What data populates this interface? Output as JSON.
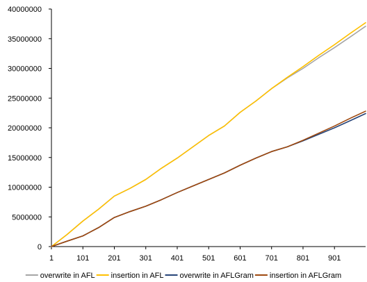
{
  "chart_data": {
    "type": "line",
    "title": "",
    "xlabel": "",
    "ylabel": "",
    "x_ticks": [
      1,
      101,
      201,
      301,
      401,
      501,
      601,
      701,
      801,
      901
    ],
    "xlim": [
      1,
      1000
    ],
    "y_ticks": [
      0,
      5000000,
      10000000,
      15000000,
      20000000,
      25000000,
      30000000,
      35000000,
      40000000
    ],
    "y_tick_labels": [
      "0",
      "5000000",
      "10000000",
      "15000000",
      "20000000",
      "25000000",
      "30000000",
      "35000000",
      "40000000"
    ],
    "ylim": [
      0,
      40000000
    ],
    "grid": false,
    "legend_position": "bottom",
    "series": [
      {
        "name": "overwrite in AFL",
        "color": "#a5a5a5",
        "x": [
          1,
          50,
          101,
          151,
          201,
          251,
          301,
          351,
          401,
          451,
          501,
          551,
          601,
          651,
          701,
          751,
          801,
          851,
          901,
          951,
          1000
        ],
        "values": [
          0,
          2000000,
          4300000,
          6300000,
          8500000,
          9800000,
          11300000,
          13200000,
          14900000,
          16800000,
          18700000,
          20300000,
          22600000,
          24500000,
          26600000,
          28400000,
          30000000,
          31800000,
          33500000,
          35300000,
          37100000
        ]
      },
      {
        "name": "insertion in AFL",
        "color": "#ffc000",
        "x": [
          1,
          50,
          101,
          151,
          201,
          251,
          301,
          351,
          401,
          451,
          501,
          551,
          601,
          651,
          701,
          751,
          801,
          851,
          901,
          951,
          1000
        ],
        "values": [
          0,
          2000000,
          4300000,
          6300000,
          8500000,
          9800000,
          11300000,
          13200000,
          14900000,
          16800000,
          18700000,
          20300000,
          22600000,
          24500000,
          26600000,
          28500000,
          30300000,
          32200000,
          34000000,
          35900000,
          37700000
        ]
      },
      {
        "name": "overwrite in AFLGram",
        "color": "#264478",
        "x": [
          1,
          50,
          101,
          151,
          201,
          251,
          301,
          351,
          401,
          451,
          501,
          551,
          601,
          651,
          701,
          751,
          801,
          851,
          901,
          951,
          1000
        ],
        "values": [
          0,
          900000,
          1800000,
          3200000,
          4900000,
          5900000,
          6800000,
          7900000,
          9100000,
          10200000,
          11300000,
          12400000,
          13700000,
          14900000,
          16000000,
          16800000,
          17800000,
          18900000,
          20000000,
          21200000,
          22400000
        ]
      },
      {
        "name": "insertion in AFLGram",
        "color": "#9e480e",
        "x": [
          1,
          50,
          101,
          151,
          201,
          251,
          301,
          351,
          401,
          451,
          501,
          551,
          601,
          651,
          701,
          751,
          801,
          851,
          901,
          951,
          1000
        ],
        "values": [
          0,
          900000,
          1800000,
          3200000,
          4900000,
          5900000,
          6800000,
          7900000,
          9100000,
          10200000,
          11300000,
          12400000,
          13700000,
          14900000,
          16000000,
          16800000,
          17900000,
          19100000,
          20300000,
          21600000,
          22800000
        ]
      }
    ]
  }
}
